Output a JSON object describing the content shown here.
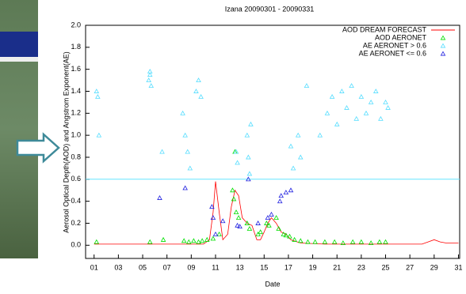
{
  "chart_data": {
    "type": "combo",
    "title": "Izana  20090301 - 20090331",
    "x_label": "Date",
    "y_label": "Aerosol Optical Depth(AOD) and Angstrom Exponent(AE)",
    "xlim": [
      0.3,
      31.1
    ],
    "ylim": [
      -0.12,
      2.0
    ],
    "xticks": [
      {
        "value": 1,
        "label": "01"
      },
      {
        "value": 3,
        "label": "03"
      },
      {
        "value": 5,
        "label": "05"
      },
      {
        "value": 7,
        "label": "07"
      },
      {
        "value": 9,
        "label": "09"
      },
      {
        "value": 11,
        "label": "11"
      },
      {
        "value": 13,
        "label": "13"
      },
      {
        "value": 15,
        "label": "15"
      },
      {
        "value": 17,
        "label": "17"
      },
      {
        "value": 19,
        "label": "19"
      },
      {
        "value": 21,
        "label": "21"
      },
      {
        "value": 23,
        "label": "23"
      },
      {
        "value": 25,
        "label": "25"
      },
      {
        "value": 27,
        "label": "27"
      },
      {
        "value": 29,
        "label": "29"
      },
      {
        "value": 31,
        "label": "31"
      }
    ],
    "yticks": [
      {
        "value": 0,
        "label": "0.0"
      },
      {
        "value": 0.2,
        "label": "0.2"
      },
      {
        "value": 0.4,
        "label": "0.4"
      },
      {
        "value": 0.6,
        "label": "0.6"
      },
      {
        "value": 0.8,
        "label": "0.8"
      },
      {
        "value": 1,
        "label": "1.0"
      },
      {
        "value": 1.2,
        "label": "1.2"
      },
      {
        "value": 1.4,
        "label": "1.4"
      },
      {
        "value": 1.6,
        "label": "1.6"
      },
      {
        "value": 1.8,
        "label": "1.8"
      },
      {
        "value": 2,
        "label": "2.0"
      }
    ],
    "hline": 0.6,
    "hline_color": "#66e6ff",
    "legend": "upper right",
    "series": [
      {
        "name": "AOD DREAM FORECAST",
        "type": "line",
        "color": "#ff0000",
        "x": [
          1,
          8,
          10,
          10.5,
          10.8,
          11.0,
          11.3,
          11.6,
          12.0,
          12.3,
          12.6,
          12.9,
          13.2,
          13.6,
          14.0,
          14.4,
          14.7,
          15.0,
          15.3,
          15.6,
          16.0,
          16.4,
          16.8,
          17.2,
          18,
          20,
          28,
          28.5,
          29,
          29.5,
          30,
          31
        ],
        "values": [
          0.01,
          0.01,
          0.01,
          0.05,
          0.3,
          0.58,
          0.3,
          0.05,
          0.1,
          0.35,
          0.5,
          0.45,
          0.25,
          0.2,
          0.18,
          0.05,
          0.05,
          0.12,
          0.2,
          0.25,
          0.2,
          0.12,
          0.1,
          0.05,
          0.02,
          0.01,
          0.01,
          0.03,
          0.05,
          0.03,
          0.02,
          0.02
        ]
      },
      {
        "name": "AOD AERONET",
        "type": "scatter",
        "color": "#00e000",
        "x": [
          1.2,
          5.6,
          6.7,
          8.4,
          8.8,
          9.2,
          9.6,
          9.9,
          10.3,
          10.8,
          11.3,
          12.4,
          12.5,
          12.6,
          12.7,
          12.9,
          13.6,
          13.8,
          14.5,
          14.7,
          15.2,
          15.4,
          16.0,
          16.2,
          16.6,
          16.8,
          17.1,
          17.5,
          18.0,
          18.6,
          19.2,
          20.0,
          20.8,
          21.5,
          22.3,
          23.0,
          23.8,
          24.5,
          25.0
        ],
        "values": [
          0.03,
          0.03,
          0.05,
          0.04,
          0.03,
          0.04,
          0.03,
          0.04,
          0.05,
          0.06,
          0.1,
          0.5,
          0.42,
          0.85,
          0.3,
          0.25,
          0.2,
          0.15,
          0.1,
          0.12,
          0.2,
          0.18,
          0.25,
          0.15,
          0.1,
          0.09,
          0.08,
          0.05,
          0.04,
          0.03,
          0.03,
          0.03,
          0.03,
          0.02,
          0.03,
          0.03,
          0.02,
          0.03,
          0.03
        ]
      },
      {
        "name": "AE AERONET > 0.6",
        "type": "scatter",
        "color": "#55ddff",
        "x": [
          1.2,
          1.3,
          1.4,
          5.5,
          5.6,
          5.7,
          5.6,
          6.6,
          8.3,
          8.5,
          8.7,
          8.9,
          9.4,
          9.6,
          9.8,
          12.7,
          12.8,
          13.6,
          13.7,
          13.8,
          13.9,
          17.2,
          17.4,
          17.8,
          18.0,
          18.5,
          19.6,
          20.2,
          20.6,
          21.0,
          21.4,
          21.8,
          22.2,
          22.6,
          23.0,
          23.4,
          23.8,
          24.2,
          24.6,
          25.0,
          25.2
        ],
        "values": [
          1.4,
          1.35,
          1.0,
          1.5,
          1.55,
          1.45,
          1.58,
          0.85,
          1.2,
          1.0,
          0.85,
          0.7,
          1.4,
          1.5,
          1.35,
          0.85,
          0.75,
          1.0,
          0.8,
          0.65,
          1.1,
          0.9,
          0.7,
          1.0,
          0.8,
          1.45,
          1.0,
          1.2,
          1.35,
          1.1,
          1.4,
          1.25,
          1.45,
          1.15,
          1.35,
          1.2,
          1.3,
          1.4,
          1.15,
          1.3,
          1.25
        ]
      },
      {
        "name": "AE AERONET <= 0.6",
        "type": "scatter",
        "color": "#2020e0",
        "x": [
          6.4,
          8.5,
          10.7,
          10.8,
          11.0,
          11.6,
          12.8,
          13.0,
          13.7,
          14.5,
          15.3,
          15.6,
          16.3,
          16.4,
          16.8,
          17.2
        ],
        "values": [
          0.43,
          0.52,
          0.35,
          0.25,
          0.1,
          0.22,
          0.18,
          0.17,
          0.6,
          0.2,
          0.25,
          0.28,
          0.4,
          0.45,
          0.48,
          0.5
        ]
      }
    ]
  }
}
